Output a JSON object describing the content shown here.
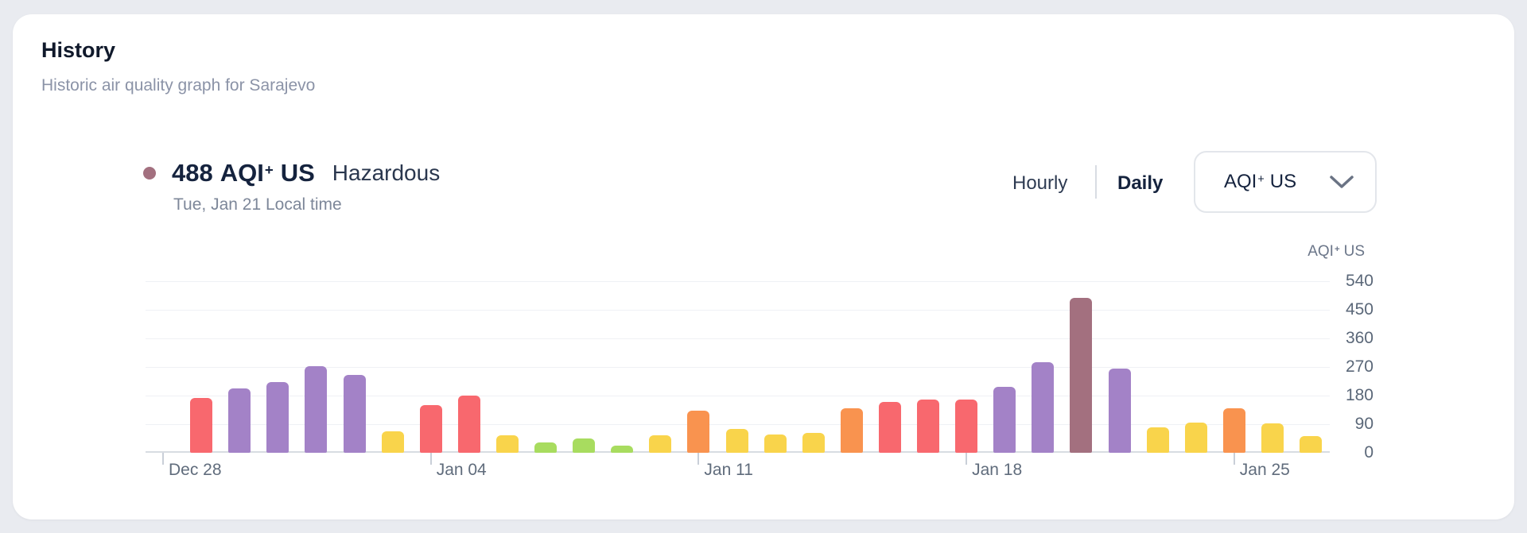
{
  "card": {
    "title": "History",
    "subtitle": "Historic air quality graph for Sarajevo"
  },
  "reading": {
    "value": "488",
    "metric": {
      "pre": "AQI",
      "plus": "+",
      "post": "US"
    },
    "category": "Hazardous",
    "datetime": "Tue, Jan 21 Local time"
  },
  "controls": {
    "hourly_label": "Hourly",
    "daily_label": "Daily",
    "selected_tab": "Daily",
    "dropdown": {
      "pre": "AQI",
      "plus": "+",
      "post": "US"
    }
  },
  "chart_data": {
    "type": "bar",
    "title": "Historic air quality graph for Sarajevo",
    "y_axis_title": {
      "pre": "AQI",
      "plus": "+",
      "post": "US"
    },
    "ylim": [
      0,
      540
    ],
    "yticks": [
      0,
      90,
      180,
      270,
      360,
      450,
      540
    ],
    "grid": true,
    "legend": false,
    "slots": 31,
    "first_bar_slot": 1,
    "x_ticks": [
      {
        "slot": 0,
        "label": "Dec 28"
      },
      {
        "slot": 7,
        "label": "Jan 04"
      },
      {
        "slot": 14,
        "label": "Jan 11"
      },
      {
        "slot": 21,
        "label": "Jan 18"
      },
      {
        "slot": 28,
        "label": "Jan 25"
      }
    ],
    "level_colors": {
      "good": "#A8DC5F",
      "moderate": "#F9D44B",
      "unhealthy_sensitive": "#F9934F",
      "unhealthy": "#F8686E",
      "very_unhealthy": "#A382C7",
      "hazardous": "#A3707F"
    },
    "highlight_color": "#A3707F",
    "bars": [
      {
        "date": "Dec 29",
        "value": 172,
        "level": "unhealthy"
      },
      {
        "date": "Dec 30",
        "value": 203,
        "level": "very_unhealthy"
      },
      {
        "date": "Dec 31",
        "value": 222,
        "level": "very_unhealthy"
      },
      {
        "date": "Jan 01",
        "value": 272,
        "level": "very_unhealthy"
      },
      {
        "date": "Jan 02",
        "value": 246,
        "level": "very_unhealthy"
      },
      {
        "date": "Jan 03",
        "value": 68,
        "level": "moderate"
      },
      {
        "date": "Jan 04",
        "value": 150,
        "level": "unhealthy"
      },
      {
        "date": "Jan 05",
        "value": 180,
        "level": "unhealthy"
      },
      {
        "date": "Jan 06",
        "value": 56,
        "level": "moderate"
      },
      {
        "date": "Jan 07",
        "value": 33,
        "level": "good"
      },
      {
        "date": "Jan 08",
        "value": 45,
        "level": "good"
      },
      {
        "date": "Jan 09",
        "value": 23,
        "level": "good"
      },
      {
        "date": "Jan 10",
        "value": 56,
        "level": "moderate"
      },
      {
        "date": "Jan 11",
        "value": 133,
        "level": "unhealthy_sensitive"
      },
      {
        "date": "Jan 12",
        "value": 76,
        "level": "moderate"
      },
      {
        "date": "Jan 13",
        "value": 58,
        "level": "moderate"
      },
      {
        "date": "Jan 14",
        "value": 63,
        "level": "moderate"
      },
      {
        "date": "Jan 15",
        "value": 141,
        "level": "unhealthy_sensitive"
      },
      {
        "date": "Jan 16",
        "value": 161,
        "level": "unhealthy"
      },
      {
        "date": "Jan 17",
        "value": 168,
        "level": "unhealthy"
      },
      {
        "date": "Jan 18",
        "value": 168,
        "level": "unhealthy"
      },
      {
        "date": "Jan 19",
        "value": 208,
        "level": "very_unhealthy"
      },
      {
        "date": "Jan 20",
        "value": 285,
        "level": "very_unhealthy"
      },
      {
        "date": "Jan 21",
        "value": 488,
        "level": "hazardous"
      },
      {
        "date": "Jan 22",
        "value": 265,
        "level": "very_unhealthy"
      },
      {
        "date": "Jan 23",
        "value": 80,
        "level": "moderate"
      },
      {
        "date": "Jan 24",
        "value": 95,
        "level": "moderate"
      },
      {
        "date": "Jan 25",
        "value": 140,
        "level": "unhealthy_sensitive"
      },
      {
        "date": "Jan 26",
        "value": 93,
        "level": "moderate"
      },
      {
        "date": "Jan 27",
        "value": 52,
        "level": "moderate"
      }
    ]
  }
}
